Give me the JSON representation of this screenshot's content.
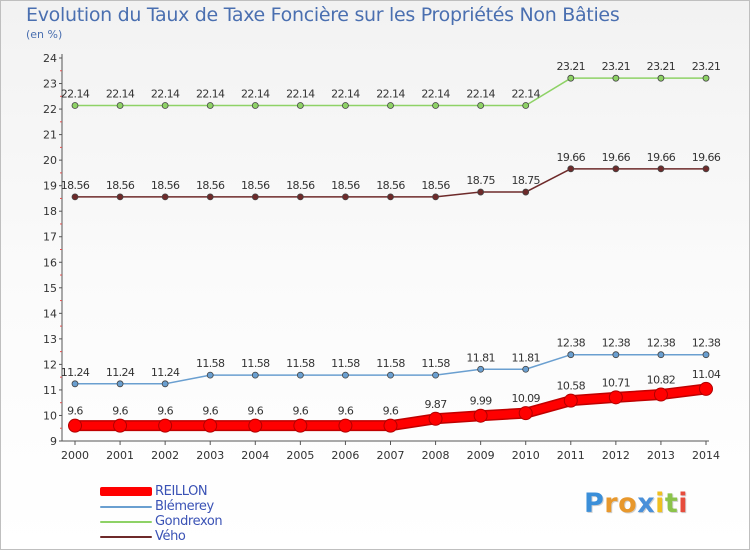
{
  "title": "Evolution du Taux de Taxe Foncière sur les Propriétés Non Bâties",
  "subtitle": "(en %)",
  "logo": {
    "letters": [
      "P",
      "r",
      "o",
      "x",
      "i",
      "t",
      "i"
    ],
    "colors": [
      "#3b8fd9",
      "#e8982c",
      "#e8982c",
      "#4a90d9",
      "#f0c020",
      "#8bc34a",
      "#e74c3c"
    ]
  },
  "chart_data": {
    "type": "line",
    "title": "Evolution du Taux de Taxe Foncière sur les Propriétés Non Bâties",
    "ylabel": "(en %)",
    "xlabel": "",
    "ylim": [
      9,
      24
    ],
    "yticks": [
      "9",
      "10",
      "11",
      "12",
      "13",
      "14",
      "15",
      "16",
      "17",
      "18",
      "19",
      "20",
      "21",
      "22",
      "23",
      "24"
    ],
    "categories": [
      "2000",
      "2001",
      "2002",
      "2003",
      "2004",
      "2005",
      "2006",
      "2007",
      "2008",
      "2009",
      "2010",
      "2011",
      "2012",
      "2013",
      "2014"
    ],
    "series": [
      {
        "name": "REILLON",
        "color": "#ff0000",
        "values": [
          9.6,
          9.6,
          9.6,
          9.6,
          9.6,
          9.6,
          9.6,
          9.6,
          9.87,
          9.99,
          10.09,
          10.58,
          10.71,
          10.82,
          11.04
        ],
        "labels": [
          "9.6",
          "9.6",
          "9.6",
          "9.6",
          "9.6",
          "9.6",
          "9.6",
          "9.6",
          "9.87",
          "9.99",
          "10.09",
          "10.58",
          "10.71",
          "10.82",
          "11.04"
        ]
      },
      {
        "name": "Blémerey",
        "color": "#6a9fd0",
        "values": [
          11.24,
          11.24,
          11.24,
          11.58,
          11.58,
          11.58,
          11.58,
          11.58,
          11.58,
          11.81,
          11.81,
          12.38,
          12.38,
          12.38,
          12.38
        ],
        "labels": [
          "11.24",
          "11.24",
          "11.24",
          "11.58",
          "11.58",
          "11.58",
          "11.58",
          "11.58",
          "11.58",
          "11.81",
          "11.81",
          "12.38",
          "12.38",
          "12.38",
          "12.38"
        ]
      },
      {
        "name": "Gondrexon",
        "color": "#8ed266",
        "values": [
          22.14,
          22.14,
          22.14,
          22.14,
          22.14,
          22.14,
          22.14,
          22.14,
          22.14,
          22.14,
          22.14,
          23.21,
          23.21,
          23.21,
          23.21
        ],
        "labels": [
          "22.14",
          "22.14",
          "22.14",
          "22.14",
          "22.14",
          "22.14",
          "22.14",
          "22.14",
          "22.14",
          "22.14",
          "22.14",
          "23.21",
          "23.21",
          "23.21",
          "23.21"
        ]
      },
      {
        "name": "Vého",
        "color": "#6e2a2a",
        "values": [
          18.56,
          18.56,
          18.56,
          18.56,
          18.56,
          18.56,
          18.56,
          18.56,
          18.56,
          18.75,
          18.75,
          19.66,
          19.66,
          19.66,
          19.66
        ],
        "labels": [
          "18.56",
          "18.56",
          "18.56",
          "18.56",
          "18.56",
          "18.56",
          "18.56",
          "18.56",
          "18.56",
          "18.75",
          "18.75",
          "19.66",
          "19.66",
          "19.66",
          "19.66"
        ]
      }
    ],
    "legend": "bottom-left",
    "grid": false
  }
}
